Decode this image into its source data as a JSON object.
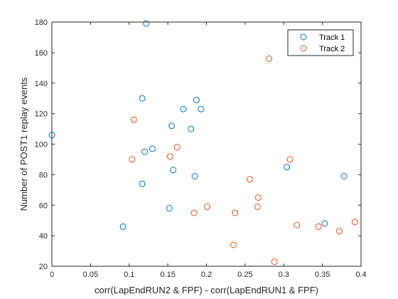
{
  "chart_data": {
    "type": "scatter",
    "title": "",
    "xlabel": "corr(LapEndRUN2 & FPF) - corr(LapEndRUN1 & FPF)",
    "ylabel": "Number of POST1 replay events",
    "xlim": [
      0,
      0.4
    ],
    "ylim": [
      20,
      180
    ],
    "xticks": [
      0,
      0.05,
      0.1,
      0.15,
      0.2,
      0.25,
      0.3,
      0.35,
      0.4
    ],
    "xtick_labels": [
      "0",
      "0.05",
      "0.1",
      "0.15",
      "0.2",
      "0.25",
      "0.3",
      "0.35",
      "0.4"
    ],
    "yticks": [
      20,
      40,
      60,
      80,
      100,
      120,
      140,
      160,
      180
    ],
    "ytick_labels": [
      "20",
      "40",
      "60",
      "80",
      "100",
      "120",
      "140",
      "160",
      "180"
    ],
    "grid": false,
    "legend": "top-right",
    "series": [
      {
        "name": "Track 1",
        "color": "#0072BD",
        "marker": "circle-open",
        "points": [
          [
            0.0,
            106
          ],
          [
            0.122,
            179
          ],
          [
            0.117,
            130
          ],
          [
            0.187,
            129
          ],
          [
            0.17,
            123
          ],
          [
            0.193,
            123
          ],
          [
            0.155,
            112
          ],
          [
            0.18,
            110
          ],
          [
            0.13,
            97
          ],
          [
            0.12,
            95
          ],
          [
            0.157,
            83
          ],
          [
            0.185,
            79
          ],
          [
            0.117,
            74
          ],
          [
            0.152,
            58
          ],
          [
            0.092,
            46
          ],
          [
            0.304,
            85
          ],
          [
            0.378,
            79
          ],
          [
            0.353,
            48
          ]
        ]
      },
      {
        "name": "Track 2",
        "color": "#D95319",
        "marker": "circle-open",
        "points": [
          [
            0.281,
            156
          ],
          [
            0.106,
            116
          ],
          [
            0.162,
            98
          ],
          [
            0.153,
            92
          ],
          [
            0.104,
            90
          ],
          [
            0.308,
            90
          ],
          [
            0.256,
            77
          ],
          [
            0.267,
            65
          ],
          [
            0.266,
            59
          ],
          [
            0.201,
            59
          ],
          [
            0.184,
            55
          ],
          [
            0.237,
            55
          ],
          [
            0.317,
            47
          ],
          [
            0.345,
            46
          ],
          [
            0.372,
            43
          ],
          [
            0.392,
            49
          ],
          [
            0.235,
            34
          ],
          [
            0.288,
            23
          ]
        ]
      }
    ]
  }
}
